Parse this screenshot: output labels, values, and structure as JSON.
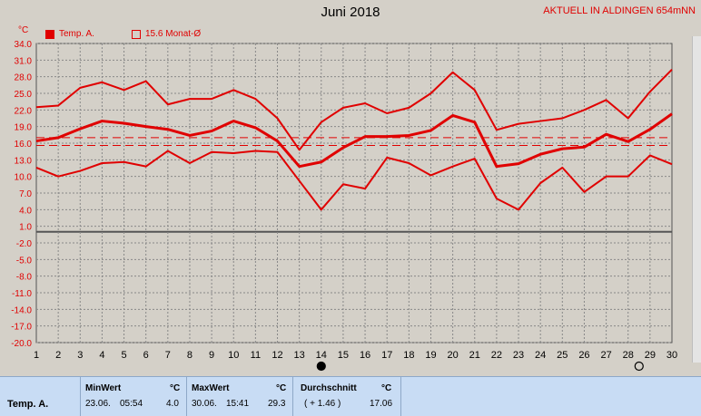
{
  "header": {
    "title": "Juni 2018",
    "status": "AKTUELL IN ALDINGEN 654mNN"
  },
  "unit_label": "°C",
  "legend": [
    {
      "label": "Temp. A.",
      "style": "filled"
    },
    {
      "label": "15.6 Monat-Ø",
      "style": "outline"
    }
  ],
  "colors": {
    "series": "#e00000",
    "background": "#d4d0c8",
    "grid": "#888888",
    "stats_bg": "#c8dcf4"
  },
  "chart_data": {
    "type": "line",
    "title": "Juni 2018",
    "ylabel": "°C",
    "x": [
      1,
      2,
      3,
      4,
      5,
      6,
      7,
      8,
      9,
      10,
      11,
      12,
      13,
      14,
      15,
      16,
      17,
      18,
      19,
      20,
      21,
      22,
      23,
      24,
      25,
      26,
      27,
      28,
      29,
      30
    ],
    "ylim": [
      -20.0,
      34.0
    ],
    "yticks": [
      34.0,
      31.0,
      28.0,
      25.0,
      22.0,
      19.0,
      16.0,
      13.0,
      10.0,
      7.0,
      4.0,
      1.0,
      -2.0,
      -5.0,
      -8.0,
      -11.0,
      -14.0,
      -17.0,
      -20.0
    ],
    "xticks": [
      "1",
      "2",
      "3",
      "4",
      "5",
      "6",
      "7",
      "8",
      "9",
      "10",
      "11",
      "12",
      "13",
      "14",
      "15",
      "16",
      "17",
      "18",
      "19",
      "20",
      "21",
      "22",
      "23",
      "24",
      "25",
      "26",
      "27",
      "28",
      "29",
      "30"
    ],
    "grid": true,
    "series": [
      {
        "name": "Temp. A.",
        "role": "max",
        "values": [
          22.5,
          22.8,
          26.0,
          27.0,
          25.6,
          27.2,
          23.0,
          24.0,
          24.0,
          25.6,
          24.0,
          20.5,
          14.8,
          19.8,
          22.4,
          23.2,
          21.4,
          22.4,
          25.0,
          28.8,
          25.6,
          18.4,
          19.5,
          20.0,
          20.5,
          22.0,
          23.8,
          20.5,
          25.3,
          29.3
        ]
      },
      {
        "name": "Temp. A.",
        "role": "mean",
        "values": [
          16.4,
          17.0,
          18.6,
          20.0,
          19.6,
          19.0,
          18.5,
          17.4,
          18.2,
          20.0,
          18.8,
          16.4,
          11.8,
          12.6,
          15.2,
          17.2,
          17.2,
          17.4,
          18.3,
          21.0,
          19.8,
          11.8,
          12.3,
          14.0,
          15.0,
          15.3,
          17.6,
          16.3,
          18.5,
          21.3
        ]
      },
      {
        "name": "Temp. A.",
        "role": "min",
        "values": [
          11.6,
          10.0,
          11.0,
          12.4,
          12.6,
          11.8,
          14.6,
          12.4,
          14.4,
          14.2,
          14.6,
          14.4,
          9.2,
          4.0,
          8.6,
          7.8,
          13.4,
          12.4,
          10.2,
          11.8,
          13.2,
          6.0,
          4.0,
          8.8,
          11.6,
          7.2,
          10.0,
          10.0,
          13.8,
          12.2
        ]
      }
    ],
    "reference_lines": [
      {
        "label": "15.6 Monat-Ø",
        "value": 15.6
      },
      {
        "value": 17.0
      }
    ],
    "markers": [
      {
        "x": 14,
        "type": "filled-circle"
      },
      {
        "x": 28.5,
        "type": "open-circle"
      }
    ]
  },
  "stats": {
    "row_label": "Temp. A.",
    "min": {
      "header": "MinWert",
      "unit": "°C",
      "date": "23.06.",
      "time": "05:54",
      "value": "4.0"
    },
    "max": {
      "header": "MaxWert",
      "unit": "°C",
      "date": "30.06.",
      "time": "15:41",
      "value": "29.3"
    },
    "avg": {
      "header": "Durchschnitt",
      "unit": "°C",
      "diff": "( + 1.46 )",
      "value": "17.06"
    }
  }
}
